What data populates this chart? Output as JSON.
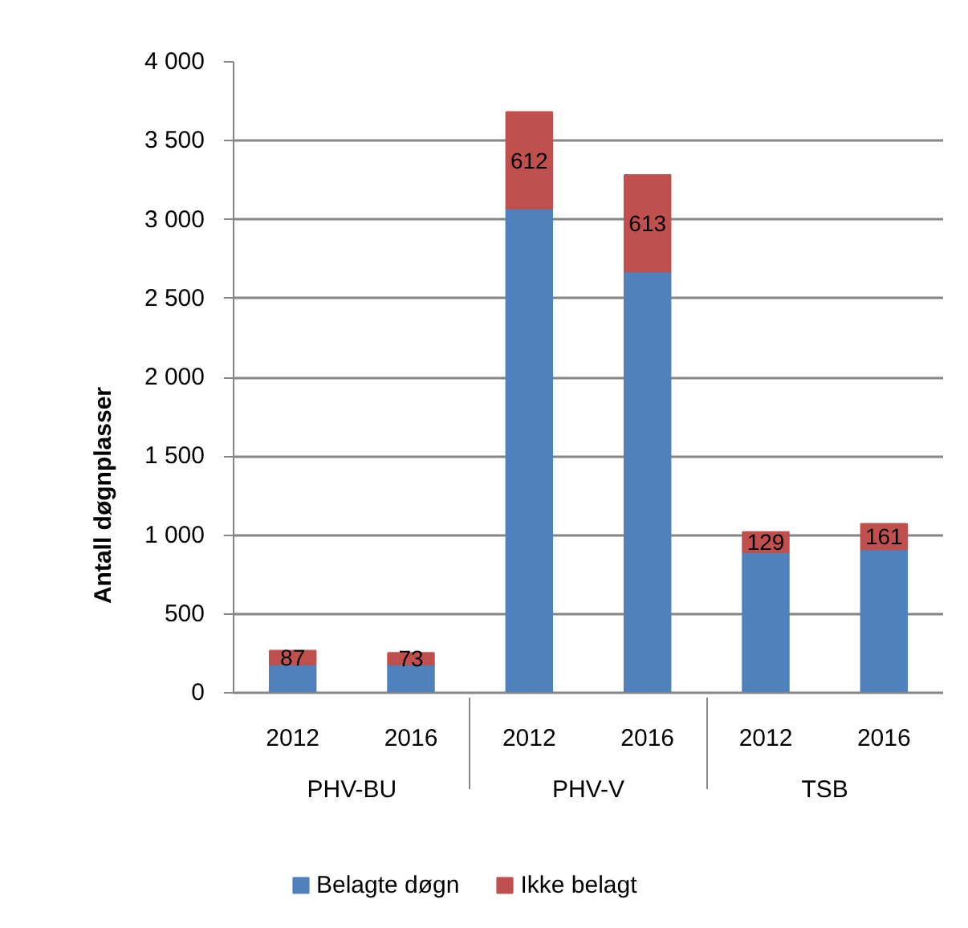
{
  "chart_data": {
    "type": "bar",
    "stacked": true,
    "categories": [
      "2012",
      "2016",
      "2012",
      "2016",
      "2012",
      "2016"
    ],
    "annotations": [
      "PHV-BU",
      "PHV-V",
      "TSB"
    ],
    "ylabel": "Antall døgnplasser",
    "series": [
      {
        "name": "Belagte døgn",
        "color": "#4f81bd",
        "values": [
          180,
          180,
          3070,
          2670,
          890,
          910
        ]
      },
      {
        "name": "Ikke belagt",
        "color": "#c0504d",
        "values": [
          87,
          73,
          612,
          613,
          129,
          161
        ],
        "value_labels": [
          "87",
          "73",
          "612",
          "613",
          "129",
          "161"
        ]
      }
    ],
    "ylim": [
      0,
      4000
    ],
    "yticks": [
      0,
      500,
      {
        "value": 1000,
        "label": "1 000"
      },
      {
        "value": 1500,
        "label": "1 500"
      },
      {
        "value": 2000,
        "label": "2 000"
      },
      {
        "value": 2500,
        "label": "2 500"
      },
      {
        "value": 3000,
        "label": "3 000"
      },
      {
        "value": 3500,
        "label": "3 500"
      },
      {
        "value": 4000,
        "label": "4 000"
      }
    ],
    "grid": "y",
    "legend": "bottom"
  }
}
